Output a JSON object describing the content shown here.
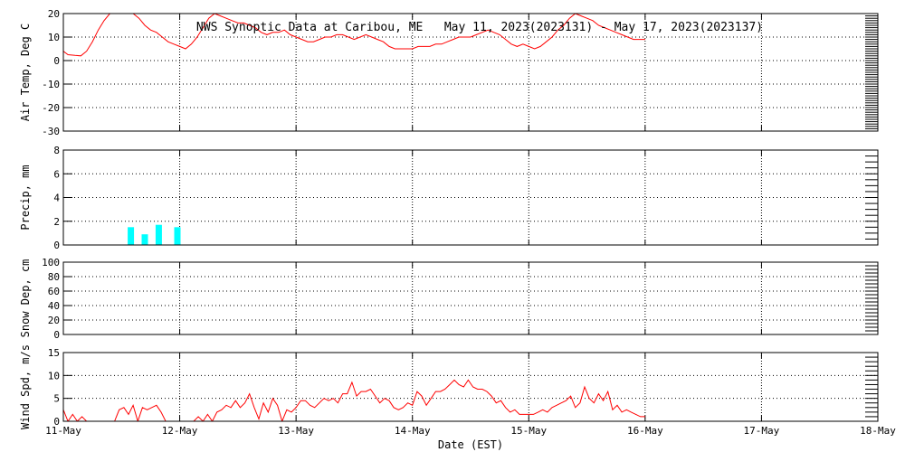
{
  "title": "NWS Synoptic Data at Caribou, ME   May 11, 2023(2023131) - May 17, 2023(2023137)",
  "xlabel": "Date (EST)",
  "x_ticks": [
    "11-May",
    "12-May",
    "13-May",
    "14-May",
    "15-May",
    "16-May",
    "17-May",
    "18-May"
  ],
  "x_range_days": [
    0,
    7
  ],
  "colors": {
    "line": "#ff0000",
    "bar": "#00ffff",
    "axis": "#000000",
    "grid": "#000000"
  },
  "chart_data": [
    {
      "type": "line",
      "ylabel": "Air Temp, Deg C",
      "ylim": [
        -30,
        20
      ],
      "y_ticks": [
        -30,
        -20,
        -10,
        0,
        10,
        20
      ],
      "grid": true,
      "series": [
        {
          "x": [
            0,
            0.04,
            0.1,
            0.15,
            0.2,
            0.25,
            0.3,
            0.35,
            0.4,
            0.45,
            0.5,
            0.55,
            0.6,
            0.65,
            0.7,
            0.75,
            0.8,
            0.85,
            0.9,
            0.95,
            1.0,
            1.05,
            1.1,
            1.15,
            1.2,
            1.25,
            1.3,
            1.35,
            1.4,
            1.45,
            1.5,
            1.55,
            1.6,
            1.65,
            1.7,
            1.75,
            1.8,
            1.85,
            1.9,
            1.95,
            2.0,
            2.05,
            2.1,
            2.15,
            2.2,
            2.25,
            2.3,
            2.35,
            2.4,
            2.45,
            2.5,
            2.55,
            2.6,
            2.65,
            2.7,
            2.75,
            2.8,
            2.85,
            2.9,
            2.95,
            3.0,
            3.05,
            3.1,
            3.15,
            3.2,
            3.25,
            3.3,
            3.35,
            3.4,
            3.45,
            3.5,
            3.55,
            3.6,
            3.65,
            3.7,
            3.75,
            3.8,
            3.85,
            3.9,
            3.95,
            4.0,
            4.05,
            4.1,
            4.15,
            4.2,
            4.25,
            4.3,
            4.35,
            4.4,
            4.45,
            4.5,
            4.55,
            4.6,
            4.65,
            4.7,
            4.75,
            4.8,
            4.85,
            4.9,
            4.95,
            5.0
          ],
          "y": [
            4,
            2.5,
            2.2,
            2,
            4,
            8,
            13,
            17,
            20,
            22,
            22,
            21,
            20,
            18,
            15,
            13,
            12,
            10,
            8,
            7,
            6,
            5,
            7,
            10,
            14,
            18,
            20,
            19,
            18,
            17,
            16,
            16,
            15,
            14,
            12,
            11,
            12,
            12,
            13,
            11,
            10,
            9,
            8,
            8,
            9,
            10,
            10,
            11,
            11,
            10,
            9,
            10,
            11,
            10,
            9,
            8,
            6,
            5,
            5,
            5,
            5,
            6,
            6,
            6,
            7,
            7,
            8,
            9,
            10,
            10,
            10,
            11,
            12,
            13,
            12,
            11,
            9,
            7,
            6,
            7,
            6,
            5,
            6,
            8,
            10,
            13,
            15,
            18,
            20,
            19,
            18,
            17,
            15,
            14,
            13,
            12,
            11,
            10,
            9,
            9,
            9
          ]
        }
      ]
    },
    {
      "type": "bar",
      "ylabel": "Precip, mm",
      "ylim": [
        0,
        8
      ],
      "y_ticks": [
        0,
        2,
        4,
        6,
        8
      ],
      "grid": true,
      "x": [
        0.58,
        0.7,
        0.82,
        0.98
      ],
      "values": [
        1.5,
        0.9,
        1.7,
        1.5
      ]
    },
    {
      "type": "line",
      "ylabel": "Snow Dep, cm",
      "ylim": [
        0,
        100
      ],
      "y_ticks": [
        0,
        20,
        40,
        60,
        80,
        100
      ],
      "grid": true,
      "series": []
    },
    {
      "type": "line",
      "ylabel": "Wind Spd, m/s",
      "ylim": [
        0,
        15
      ],
      "y_ticks": [
        0,
        5,
        10,
        15
      ],
      "grid": true,
      "series": [
        {
          "x": [
            0,
            0.04,
            0.08,
            0.12,
            0.16,
            0.2,
            0.24,
            0.28,
            0.32,
            0.36,
            0.4,
            0.44,
            0.48,
            0.52,
            0.56,
            0.6,
            0.64,
            0.68,
            0.72,
            0.76,
            0.8,
            0.84,
            0.88,
            0.92,
            0.96,
            1.0,
            1.04,
            1.08,
            1.12,
            1.16,
            1.2,
            1.24,
            1.28,
            1.32,
            1.36,
            1.4,
            1.44,
            1.48,
            1.52,
            1.56,
            1.6,
            1.64,
            1.68,
            1.72,
            1.76,
            1.8,
            1.84,
            1.88,
            1.92,
            1.96,
            2.0,
            2.04,
            2.08,
            2.12,
            2.16,
            2.2,
            2.24,
            2.28,
            2.32,
            2.36,
            2.4,
            2.44,
            2.48,
            2.52,
            2.56,
            2.6,
            2.64,
            2.68,
            2.72,
            2.76,
            2.8,
            2.84,
            2.88,
            2.92,
            2.96,
            3.0,
            3.04,
            3.08,
            3.12,
            3.16,
            3.2,
            3.24,
            3.28,
            3.32,
            3.36,
            3.4,
            3.44,
            3.48,
            3.52,
            3.56,
            3.6,
            3.64,
            3.68,
            3.72,
            3.76,
            3.8,
            3.84,
            3.88,
            3.92,
            3.96,
            4.0,
            4.04,
            4.08,
            4.12,
            4.16,
            4.2,
            4.24,
            4.28,
            4.32,
            4.36,
            4.4,
            4.44,
            4.48,
            4.52,
            4.56,
            4.6,
            4.64,
            4.68,
            4.72,
            4.76,
            4.8,
            4.84,
            4.88,
            4.92,
            4.96,
            5.0
          ],
          "y": [
            2.5,
            0,
            1.5,
            0,
            1,
            0,
            0,
            0,
            0,
            0,
            0,
            0,
            2.5,
            3,
            1.5,
            3.5,
            0,
            3,
            2.5,
            3,
            3.5,
            2,
            0,
            0,
            0,
            0,
            0,
            0,
            0,
            1,
            0,
            1.5,
            0,
            2,
            2.5,
            3.5,
            3,
            4.5,
            3,
            4,
            6,
            3,
            0.5,
            4,
            2,
            5,
            3.5,
            0,
            2.5,
            2,
            3,
            4.5,
            4.5,
            3.5,
            3,
            4,
            5,
            4.5,
            5,
            4,
            6,
            6,
            8.5,
            5.5,
            6.5,
            6.5,
            7,
            5.5,
            4,
            5,
            4.5,
            3,
            2.5,
            3,
            4,
            3.5,
            6.5,
            5.5,
            3.5,
            5,
            6.5,
            6.5,
            7,
            8,
            9,
            8,
            7.5,
            9,
            7.5,
            7,
            7,
            6.5,
            5.5,
            4,
            4.5,
            3,
            2,
            2.5,
            1.5,
            1.5,
            1.5,
            1.5,
            2,
            2.5,
            2,
            3,
            3.5,
            4,
            4.5,
            5.5,
            3,
            4,
            7.5,
            5,
            4,
            6,
            4.5,
            6.5,
            2.5,
            3.5,
            2,
            2.5,
            2,
            1.5,
            1,
            1
          ]
        }
      ]
    }
  ]
}
